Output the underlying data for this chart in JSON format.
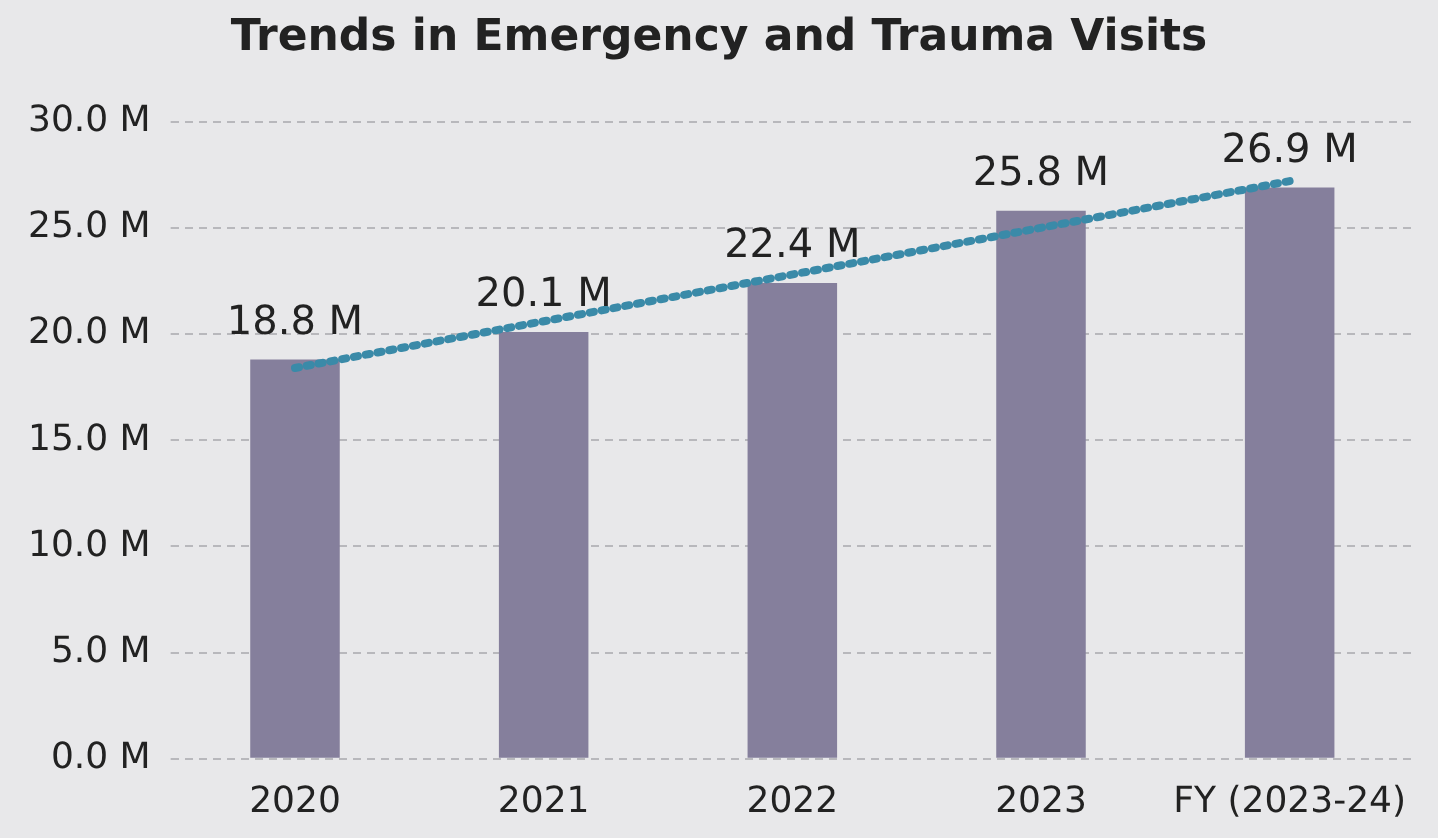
{
  "chart_data": {
    "type": "bar",
    "title": "Trends in Emergency and Trauma Visits",
    "categories": [
      "2020",
      "2021",
      "2022",
      "2023",
      "FY (2023-24)"
    ],
    "series": [
      {
        "color": "#857f9c",
        "values": [
          18.8,
          20.1,
          22.4,
          25.8,
          26.9
        ],
        "value_labels": [
          "18.8 M",
          "20.1 M",
          "22.4 M",
          "25.8 M",
          "26.9 M"
        ]
      },
      {
        "type": "line",
        "color": "#3a8aa8",
        "values": [
          18.4,
          null,
          null,
          null,
          27.2
        ],
        "line_style": "dotted"
      }
    ],
    "ylim": [
      0,
      30
    ],
    "yticks": [
      {
        "value": 0,
        "label": "0.0 M"
      },
      {
        "value": 5,
        "label": "5.0 M"
      },
      {
        "value": 10,
        "label": "10.0 M"
      },
      {
        "value": 15,
        "label": "15.0 M"
      },
      {
        "value": 20,
        "label": "20.0 M"
      },
      {
        "value": 25,
        "label": "25.0 M"
      },
      {
        "value": 30,
        "label": "30.0 M"
      }
    ],
    "grid": "y",
    "legend": false,
    "marker": "none"
  }
}
